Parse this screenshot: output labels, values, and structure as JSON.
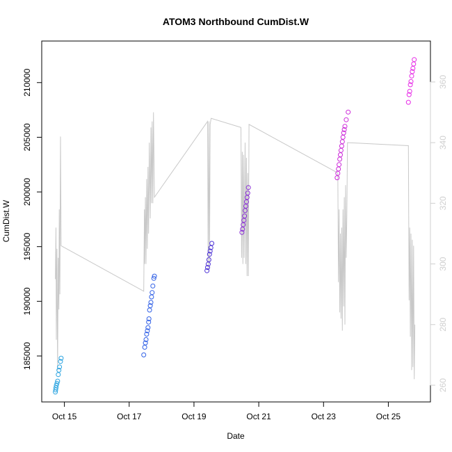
{
  "chart_data": {
    "type": "scatter",
    "title": "ATOM3 Northbound CumDist.W",
    "xlabel": "Date",
    "ylabel": "CumDist.W",
    "x_unit": "days",
    "x_ticks": [
      {
        "label": "Oct 15",
        "value": 15.0
      },
      {
        "label": "Oct 17",
        "value": 17.0
      },
      {
        "label": "Oct 19",
        "value": 19.0
      },
      {
        "label": "Oct 21",
        "value": 21.0
      },
      {
        "label": "Oct 23",
        "value": 23.0
      },
      {
        "label": "Oct 25",
        "value": 25.0
      }
    ],
    "xlim": [
      14.3,
      26.3
    ],
    "ylim": [
      180800,
      213800
    ],
    "y_ticks": [
      185000,
      190000,
      195000,
      200000,
      205000,
      210000
    ],
    "y2lim": [
      254.5,
      373.5
    ],
    "y2_ticks": [
      260,
      280,
      300,
      320,
      340,
      360
    ],
    "grid": false,
    "legend": "none",
    "series": [
      {
        "color": "#29a3e0",
        "points": [
          [
            14.72,
            181700
          ],
          [
            14.73,
            181900
          ],
          [
            14.74,
            182100
          ],
          [
            14.75,
            182300
          ],
          [
            14.77,
            182500
          ],
          [
            14.79,
            182700
          ],
          [
            14.81,
            183300
          ],
          [
            14.83,
            183700
          ],
          [
            14.85,
            184000
          ],
          [
            14.88,
            184500
          ],
          [
            14.9,
            184800
          ]
        ]
      },
      {
        "color": "#2f5fe6",
        "points": [
          [
            17.45,
            185100
          ],
          [
            17.48,
            185800
          ],
          [
            17.5,
            186200
          ],
          [
            17.52,
            186500
          ],
          [
            17.54,
            187000
          ],
          [
            17.56,
            187300
          ],
          [
            17.58,
            187600
          ],
          [
            17.6,
            188100
          ],
          [
            17.61,
            188400
          ],
          [
            17.63,
            189200
          ],
          [
            17.65,
            189600
          ],
          [
            17.67,
            189900
          ],
          [
            17.69,
            190400
          ],
          [
            17.71,
            190800
          ],
          [
            17.73,
            191400
          ],
          [
            17.76,
            192100
          ],
          [
            17.78,
            192300
          ]
        ]
      },
      {
        "color": "#4b2fd6",
        "points": [
          [
            19.4,
            192800
          ],
          [
            19.42,
            193100
          ],
          [
            19.44,
            193400
          ],
          [
            19.46,
            193800
          ],
          [
            19.48,
            194300
          ],
          [
            19.5,
            194600
          ],
          [
            19.52,
            194900
          ],
          [
            19.55,
            195300
          ]
        ]
      },
      {
        "color": "#8a2fd6",
        "points": [
          [
            20.48,
            196300
          ],
          [
            20.5,
            196600
          ],
          [
            20.52,
            197000
          ],
          [
            20.54,
            197400
          ],
          [
            20.56,
            197800
          ],
          [
            20.58,
            198300
          ],
          [
            20.6,
            198700
          ],
          [
            20.62,
            199100
          ],
          [
            20.64,
            199500
          ],
          [
            20.66,
            199900
          ],
          [
            20.68,
            200400
          ]
        ]
      },
      {
        "color": "#cc29d9",
        "points": [
          [
            23.42,
            201300
          ],
          [
            23.44,
            201700
          ],
          [
            23.46,
            202100
          ],
          [
            23.48,
            202500
          ],
          [
            23.5,
            203000
          ],
          [
            23.52,
            203400
          ],
          [
            23.54,
            203800
          ],
          [
            23.56,
            204200
          ],
          [
            23.58,
            204600
          ],
          [
            23.6,
            205000
          ],
          [
            23.62,
            205400
          ],
          [
            23.64,
            205700
          ],
          [
            23.66,
            206000
          ],
          [
            23.7,
            206600
          ],
          [
            23.76,
            207300
          ]
        ]
      },
      {
        "color": "#e629e6",
        "points": [
          [
            25.62,
            208200
          ],
          [
            25.64,
            208900
          ],
          [
            25.66,
            209200
          ],
          [
            25.68,
            209800
          ],
          [
            25.7,
            210100
          ],
          [
            25.72,
            210600
          ],
          [
            25.74,
            211000
          ],
          [
            25.76,
            211300
          ],
          [
            25.78,
            211700
          ],
          [
            25.8,
            212100
          ]
        ]
      }
    ],
    "right_axis_line": {
      "color": "#c8c8c8",
      "points": [
        [
          14.72,
          295
        ],
        [
          14.74,
          312
        ],
        [
          14.75,
          275
        ],
        [
          14.77,
          305
        ],
        [
          14.79,
          265
        ],
        [
          14.81,
          302
        ],
        [
          14.83,
          285
        ],
        [
          14.84,
          318
        ],
        [
          14.86,
          290
        ],
        [
          14.88,
          342
        ],
        [
          14.9,
          306
        ],
        [
          17.45,
          291
        ],
        [
          17.47,
          318
        ],
        [
          17.48,
          300
        ],
        [
          17.5,
          322
        ],
        [
          17.52,
          300
        ],
        [
          17.54,
          328
        ],
        [
          17.56,
          305
        ],
        [
          17.58,
          332
        ],
        [
          17.6,
          310
        ],
        [
          17.62,
          340
        ],
        [
          17.65,
          315
        ],
        [
          17.67,
          345
        ],
        [
          17.69,
          320
        ],
        [
          17.71,
          347
        ],
        [
          17.73,
          320
        ],
        [
          17.75,
          350
        ],
        [
          17.78,
          322
        ],
        [
          19.42,
          347
        ],
        [
          19.44,
          298
        ],
        [
          19.46,
          347
        ],
        [
          19.48,
          300
        ],
        [
          19.5,
          346
        ],
        [
          19.53,
          348
        ],
        [
          20.45,
          345
        ],
        [
          20.47,
          302
        ],
        [
          20.49,
          337
        ],
        [
          20.51,
          300
        ],
        [
          20.53,
          336
        ],
        [
          20.55,
          302
        ],
        [
          20.58,
          340
        ],
        [
          20.6,
          300
        ],
        [
          20.62,
          335
        ],
        [
          20.64,
          296
        ],
        [
          20.66,
          330
        ],
        [
          20.68,
          296
        ],
        [
          20.7,
          346
        ],
        [
          23.44,
          330
        ],
        [
          23.46,
          294
        ],
        [
          23.48,
          318
        ],
        [
          23.5,
          284
        ],
        [
          23.52,
          310
        ],
        [
          23.54,
          282
        ],
        [
          23.56,
          312
        ],
        [
          23.58,
          278
        ],
        [
          23.6,
          318
        ],
        [
          23.62,
          286
        ],
        [
          23.64,
          322
        ],
        [
          23.66,
          280
        ],
        [
          23.68,
          326
        ],
        [
          23.7,
          302
        ],
        [
          23.72,
          316
        ],
        [
          23.74,
          340
        ],
        [
          25.62,
          339
        ],
        [
          25.64,
          288
        ],
        [
          25.66,
          312
        ],
        [
          25.68,
          276
        ],
        [
          25.7,
          310
        ],
        [
          25.72,
          265
        ],
        [
          25.74,
          308
        ],
        [
          25.76,
          266
        ],
        [
          25.78,
          306
        ],
        [
          25.8,
          262
        ],
        [
          25.82,
          280
        ]
      ]
    }
  }
}
